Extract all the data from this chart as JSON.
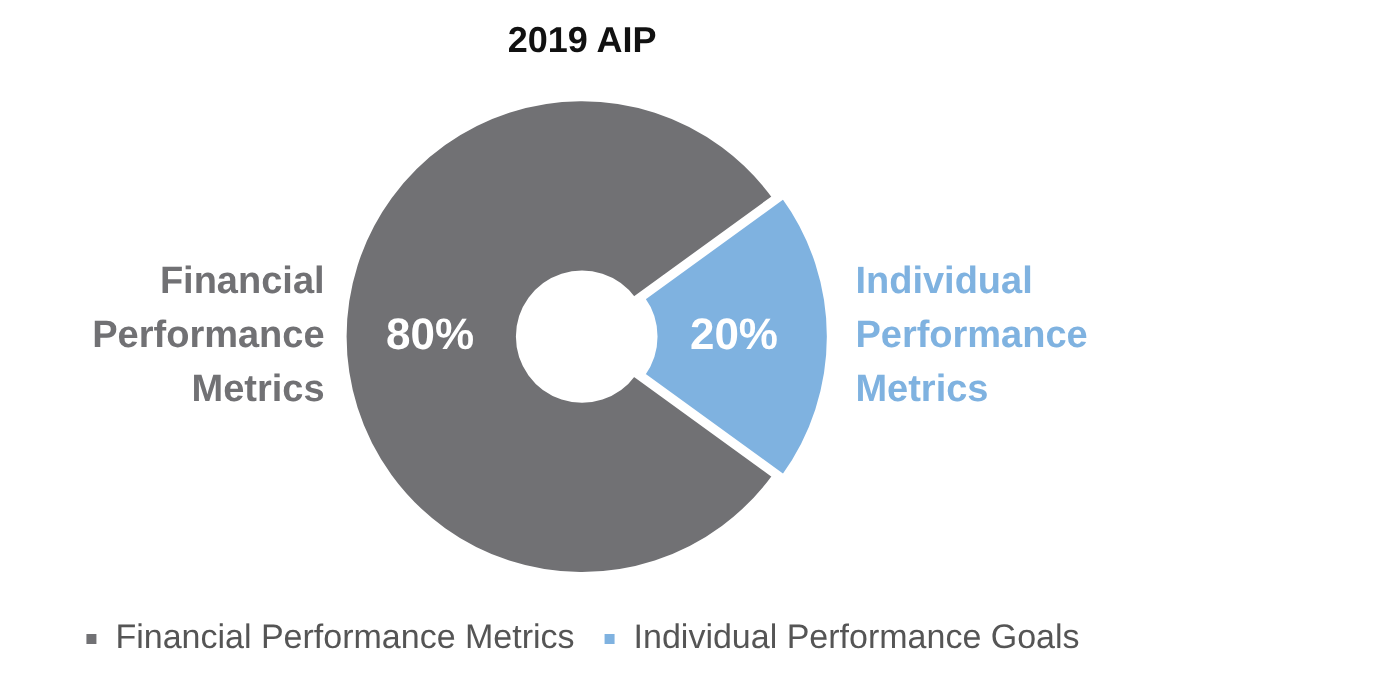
{
  "chart_data": {
    "type": "donut",
    "title": "2019 AIP",
    "categories": [
      "Financial Performance Metrics",
      "Individual Performance Goals"
    ],
    "values": [
      80,
      20
    ],
    "colors": [
      "#717174",
      "#7fb2e0"
    ],
    "value_labels": [
      "80%",
      "20%"
    ],
    "annotations": [
      "Financial Performance Metrics",
      "Individual Performance Metrics"
    ],
    "legend": "bottom"
  }
}
